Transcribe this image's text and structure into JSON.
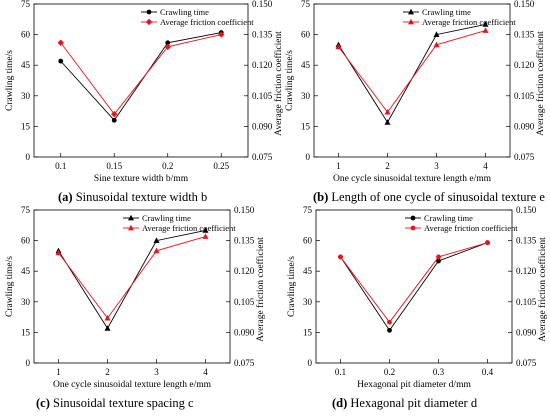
{
  "colors": {
    "crawling": "#000000",
    "friction": "#e8141b"
  },
  "chart_data": [
    {
      "type": "line",
      "caption_label": "(a)",
      "caption_text": "Sinusoidal texture width b",
      "xlabel": "Sine texture width b/mm",
      "ylabel": "Crawling time/s",
      "y2label": "Average friction coefficient",
      "categories": [
        "0.1",
        "0.15",
        "0.2",
        "0.25"
      ],
      "ylim": [
        0,
        75
      ],
      "yticks": [
        0,
        15,
        30,
        45,
        60,
        75
      ],
      "y2lim": [
        0.075,
        0.15
      ],
      "y2ticks": [
        "0.075",
        "0.090",
        "0.105",
        "0.120",
        "0.135",
        "0.150"
      ],
      "series": [
        {
          "name": "Crawling time",
          "axis": "left",
          "marker": "circle",
          "color": "#000000",
          "values": [
            47,
            18,
            56,
            61
          ]
        },
        {
          "name": "Average friction coefficient",
          "axis": "right",
          "marker": "diamond",
          "color": "#e8141b",
          "values": [
            0.131,
            0.096,
            0.129,
            0.135
          ]
        }
      ],
      "legend": "top-right"
    },
    {
      "type": "line",
      "caption_label": "(b)",
      "caption_text": "Length of one cycle of sinusoidal texture e",
      "xlabel": "One cycle sinusoidal texture length e/mm",
      "ylabel": "Crawling time/s",
      "y2label": "Average friction coefficient",
      "categories": [
        "1",
        "2",
        "3",
        "4"
      ],
      "ylim": [
        0,
        75
      ],
      "yticks": [
        0,
        15,
        30,
        45,
        60,
        75
      ],
      "y2lim": [
        0.075,
        0.15
      ],
      "y2ticks": [
        "0.075",
        "0.090",
        "0.105",
        "0.120",
        "0.135",
        "0.150"
      ],
      "series": [
        {
          "name": "Crawling time",
          "axis": "left",
          "marker": "triangle",
          "color": "#000000",
          "values": [
            55,
            17,
            60,
            65
          ]
        },
        {
          "name": "Average friction coefficient",
          "axis": "right",
          "marker": "triangle",
          "color": "#e8141b",
          "values": [
            0.129,
            0.097,
            0.13,
            0.137
          ]
        }
      ],
      "legend": "top-right"
    },
    {
      "type": "line",
      "caption_label": "(c)",
      "caption_text": "Sinusoidal texture spacing c",
      "xlabel": "One cycle sinusoidal texture length e/mm",
      "ylabel": "Crawling time/s",
      "y2label": "Average friction coefficient",
      "categories": [
        "1",
        "2",
        "3",
        "4"
      ],
      "ylim": [
        0,
        75
      ],
      "yticks": [
        0,
        15,
        30,
        45,
        60,
        75
      ],
      "y2lim": [
        0.075,
        0.15
      ],
      "y2ticks": [
        "0.075",
        "0.090",
        "0.105",
        "0.120",
        "0.135",
        "0.150"
      ],
      "series": [
        {
          "name": "Crawling time",
          "axis": "left",
          "marker": "triangle",
          "color": "#000000",
          "values": [
            55,
            17,
            60,
            65
          ]
        },
        {
          "name": "Average friction coefficient",
          "axis": "right",
          "marker": "triangle",
          "color": "#e8141b",
          "values": [
            0.129,
            0.097,
            0.13,
            0.137
          ]
        }
      ],
      "legend": "top-right"
    },
    {
      "type": "line",
      "caption_label": "(d)",
      "caption_text": "Hexagonal pit diameter d",
      "xlabel": "Hexagonal pit diameter d/mm",
      "ylabel": "Crawling time/s",
      "y2label": "Average friction coefficient",
      "categories": [
        "0.1",
        "0.2",
        "0.3",
        "0.4"
      ],
      "ylim": [
        0,
        75
      ],
      "yticks": [
        0,
        15,
        30,
        45,
        60,
        75
      ],
      "y2lim": [
        0.075,
        0.15
      ],
      "y2ticks": [
        "0.075",
        "0.090",
        "0.105",
        "0.120",
        "0.135",
        "0.150"
      ],
      "series": [
        {
          "name": "Crawling time",
          "axis": "left",
          "marker": "circle",
          "color": "#000000",
          "values": [
            52,
            16,
            50,
            59
          ]
        },
        {
          "name": "Average friction coefficient",
          "axis": "right",
          "marker": "circle",
          "color": "#e8141b",
          "values": [
            0.127,
            0.095,
            0.127,
            0.134
          ]
        }
      ],
      "legend": "top-right"
    }
  ]
}
